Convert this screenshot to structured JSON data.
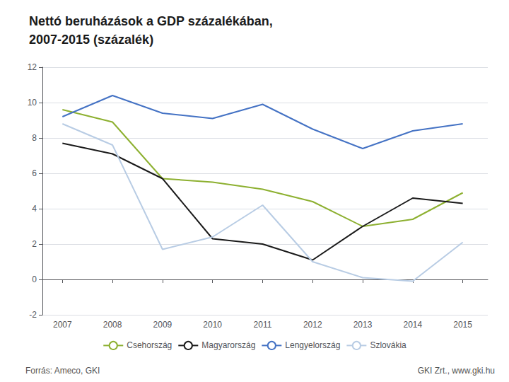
{
  "chart_data": {
    "type": "line",
    "title": "Nettó beruházások a GDP százalékában,\n2007-2015 (százalék)",
    "annotations": [
      "Forrás: Ameco, GKI",
      "GKI Zrt., www.gki.hu"
    ],
    "x": [
      2007,
      2008,
      2009,
      2010,
      2011,
      2012,
      2013,
      2014,
      2015
    ],
    "xlim": [
      2006.6,
      2015.5
    ],
    "xticks": [
      2007,
      2008,
      2009,
      2010,
      2011,
      2012,
      2013,
      2014,
      2015
    ],
    "ylim": [
      -2,
      12
    ],
    "yticks": [
      -2,
      0,
      2,
      4,
      6,
      8,
      10,
      12
    ],
    "grid": true,
    "legend": "bottom",
    "series": [
      {
        "name": "Csehország",
        "color": "#8db030",
        "values": [
          9.6,
          8.9,
          5.7,
          5.5,
          5.1,
          4.4,
          3.0,
          3.4,
          4.9
        ]
      },
      {
        "name": "Magyarország",
        "color": "#1a1a1a",
        "values": [
          7.7,
          7.1,
          5.7,
          2.3,
          2.0,
          1.1,
          3.0,
          4.6,
          4.3
        ]
      },
      {
        "name": "Lengyelország",
        "color": "#4472c4",
        "values": [
          9.2,
          10.4,
          9.4,
          9.1,
          9.9,
          8.5,
          7.4,
          8.4,
          8.8
        ]
      },
      {
        "name": "Szlovákia",
        "color": "#b8cce4",
        "values": [
          8.8,
          7.6,
          1.7,
          2.4,
          4.2,
          1.0,
          0.1,
          -0.1,
          2.1
        ]
      }
    ]
  }
}
